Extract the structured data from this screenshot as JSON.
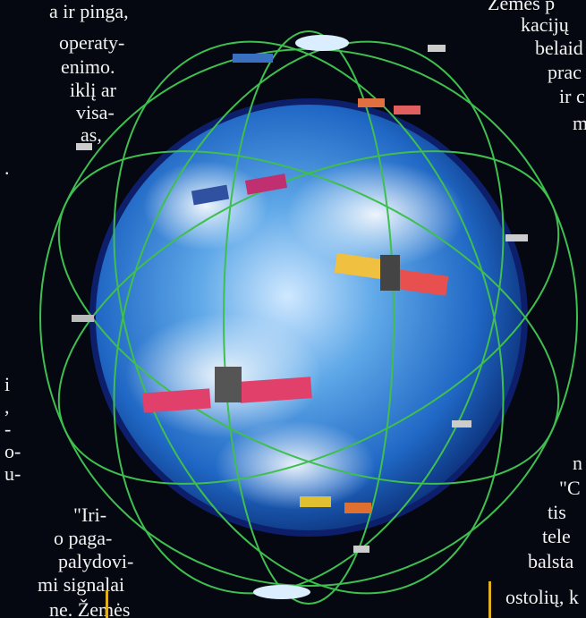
{
  "left_text": [
    "a ir pinga,",
    "operaty-",
    "enimo.",
    "iklį ar",
    "visa-",
    "as,",
    ".",
    "i",
    ",",
    "-",
    "o-",
    "u-",
    "\"Iri-",
    "o paga-",
    "palydovi-",
    "mi signalai",
    "ne. Žemės"
  ],
  "right_text": [
    "Žemės p",
    "kacijų",
    "belaid",
    "prac",
    "ir c",
    "m",
    "n",
    "\"C",
    "tis",
    "tele",
    "balsta",
    "ostolių, k"
  ]
}
